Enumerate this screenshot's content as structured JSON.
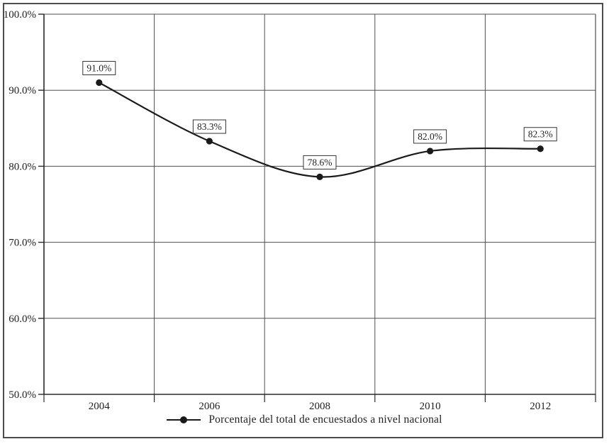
{
  "chart_data": {
    "type": "line",
    "title": "",
    "xlabel": "",
    "ylabel": "",
    "categories": [
      "2004",
      "2006",
      "2008",
      "2010",
      "2012"
    ],
    "series": [
      {
        "name": "Porcentaje del total de encuestados a nivel nacional",
        "values": [
          91.0,
          83.3,
          78.6,
          82.0,
          82.3
        ]
      }
    ],
    "point_labels": [
      "91.0%",
      "83.3%",
      "78.6%",
      "82.0%",
      "82.3%"
    ],
    "y_ticks": [
      "100.0%",
      "90.0%",
      "80.0%",
      "70.0%",
      "60.0%",
      "50.0%"
    ],
    "ylim": [
      50,
      100
    ],
    "y_tick_step": 10,
    "grid": true,
    "line_style": "smoothed",
    "legend_position": "bottom",
    "legend": "Porcentaje del total de encuestados a nivel nacional",
    "colors": {
      "line": "#1a1a1a",
      "marker": "#1a1a1a",
      "grid": "#4f4f4f",
      "axis": "#2a2a2a",
      "label_box_border": "#333333",
      "label_box_fill": "#ffffff",
      "frame": "#4d4d4d",
      "background": "#ffffff"
    }
  }
}
